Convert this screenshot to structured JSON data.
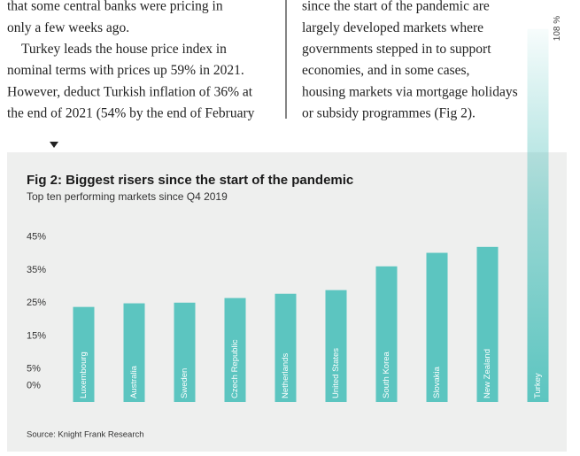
{
  "article": {
    "left_column": [
      "that some central banks were pricing in",
      "only a few weeks ago.",
      "Turkey leads the house price index in",
      "nominal terms with prices up 59% in 2021.",
      "However, deduct Turkish inflation of 36% at",
      "the end of 2021 (54% by the end of February"
    ],
    "right_column": [
      "since the start of the pandemic are",
      "largely developed markets where",
      "governments stepped in to support",
      "economies, and in some cases,",
      "housing markets via mortgage holidays",
      "or subsidy programmes (Fig 2)."
    ]
  },
  "chart_data": {
    "type": "bar",
    "title": "Fig 2: Biggest risers since the start of the pandemic",
    "subtitle": "Top ten performing markets since Q4 2019",
    "categories": [
      "Luxembourg",
      "Australia",
      "Sweden",
      "Czech Republic",
      "Netherlands",
      "United States",
      "South Korea",
      "Slovakia",
      "New Zealand",
      "Turkey"
    ],
    "values": [
      23.8,
      24.9,
      25.1,
      26.5,
      27.8,
      28.9,
      36.1,
      40.2,
      42,
      108
    ],
    "value_labels": [
      null,
      null,
      null,
      null,
      null,
      null,
      null,
      null,
      null,
      "108 %"
    ],
    "color": "#5cc5c0",
    "ylim": [
      -5,
      50
    ],
    "yticks": [
      {
        "value": 0,
        "label": "0%"
      },
      {
        "value": 5,
        "label": "5%"
      },
      {
        "value": 15,
        "label": "15%"
      },
      {
        "value": 25,
        "label": "25%"
      },
      {
        "value": 35,
        "label": "35%"
      },
      {
        "value": 45,
        "label": "45%"
      }
    ],
    "grid": false,
    "source": "Source: Knight Frank Research"
  }
}
